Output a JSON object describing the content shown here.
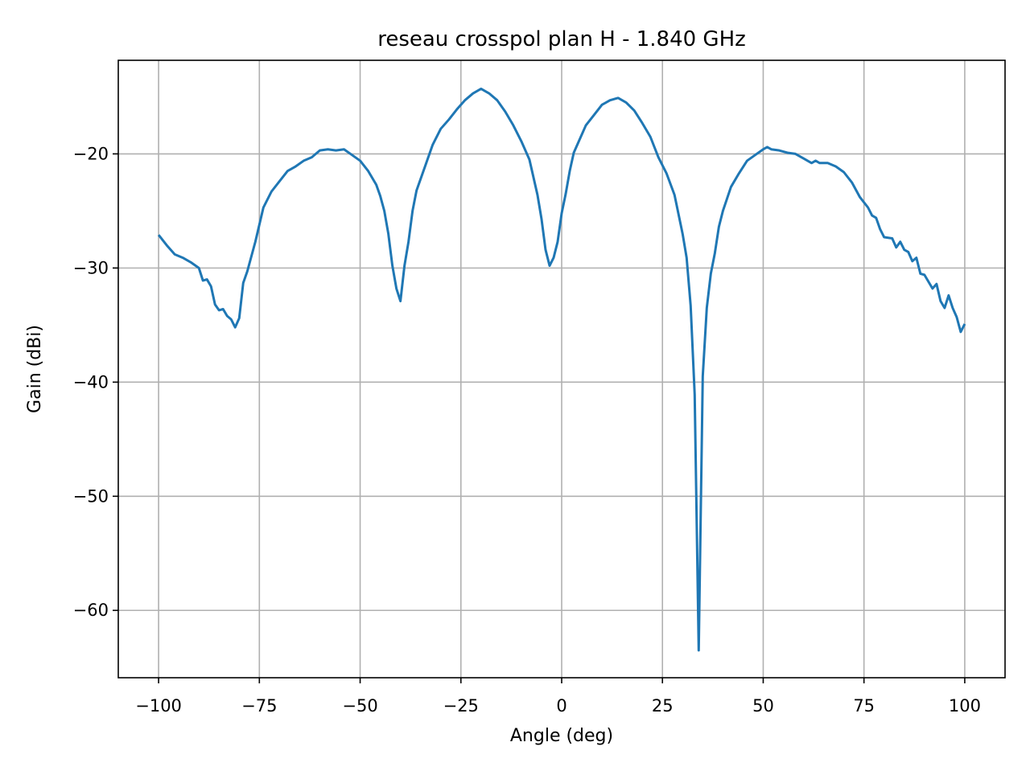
{
  "chart_data": {
    "type": "line",
    "title": "reseau crosspol plan H - 1.840 GHz",
    "x_label": "Angle (deg)",
    "y_label": "Gain (dBi)",
    "x": [
      -100,
      -98,
      -96,
      -94,
      -92,
      -90,
      -89,
      -88,
      -87,
      -86,
      -85,
      -84,
      -83,
      -82,
      -81,
      -80,
      -79,
      -78,
      -76,
      -74,
      -72,
      -70,
      -68,
      -66,
      -64,
      -62,
      -60,
      -58,
      -56,
      -54,
      -52,
      -50,
      -48,
      -46,
      -45,
      -44,
      -43,
      -42,
      -41,
      -40,
      -39,
      -38,
      -37,
      -36,
      -34,
      -32,
      -30,
      -28,
      -26,
      -24,
      -22,
      -20,
      -18,
      -16,
      -14,
      -12,
      -10,
      -8,
      -6,
      -5,
      -4,
      -3,
      -2,
      -1,
      0,
      1,
      2,
      3,
      4,
      6,
      8,
      10,
      12,
      14,
      16,
      18,
      20,
      22,
      24,
      26,
      28,
      30,
      31,
      32,
      33,
      34,
      35,
      36,
      37,
      38,
      39,
      40,
      42,
      44,
      46,
      48,
      50,
      51,
      52,
      54,
      56,
      58,
      60,
      62,
      63,
      64,
      66,
      68,
      70,
      72,
      74,
      76,
      77,
      78,
      79,
      80,
      82,
      83,
      84,
      85,
      86,
      87,
      88,
      89,
      90,
      92,
      93,
      94,
      95,
      96,
      97,
      98,
      99,
      100
    ],
    "series": [
      {
        "name": "gain",
        "color": "#1f77b4",
        "values": [
          -27.1,
          -28.0,
          -28.8,
          -29.1,
          -29.5,
          -30.0,
          -31.1,
          -31.0,
          -31.6,
          -33.2,
          -33.7,
          -33.6,
          -34.2,
          -34.5,
          -35.2,
          -34.4,
          -31.3,
          -30.3,
          -27.7,
          -24.7,
          -23.3,
          -22.4,
          -21.5,
          -21.1,
          -20.6,
          -20.3,
          -19.7,
          -19.6,
          -19.7,
          -19.6,
          -20.1,
          -20.6,
          -21.5,
          -22.7,
          -23.7,
          -25.0,
          -27.0,
          -29.8,
          -31.8,
          -32.9,
          -29.8,
          -27.7,
          -25.0,
          -23.2,
          -21.2,
          -19.2,
          -17.8,
          -17.0,
          -16.1,
          -15.3,
          -14.7,
          -14.3,
          -14.7,
          -15.3,
          -16.3,
          -17.5,
          -18.9,
          -20.5,
          -23.6,
          -25.7,
          -28.4,
          -29.8,
          -29.1,
          -27.7,
          -25.2,
          -23.5,
          -21.5,
          -19.9,
          -19.1,
          -17.5,
          -16.6,
          -15.7,
          -15.3,
          -15.1,
          -15.5,
          -16.2,
          -17.3,
          -18.5,
          -20.3,
          -21.7,
          -23.6,
          -27.0,
          -29.1,
          -33.3,
          -41.1,
          -63.5,
          -39.5,
          -33.5,
          -30.5,
          -28.7,
          -26.4,
          -25.0,
          -22.9,
          -21.7,
          -20.6,
          -20.1,
          -19.6,
          -19.4,
          -19.6,
          -19.7,
          -19.9,
          -20.0,
          -20.4,
          -20.8,
          -20.6,
          -20.8,
          -20.8,
          -21.1,
          -21.6,
          -22.5,
          -23.8,
          -24.7,
          -25.4,
          -25.6,
          -26.6,
          -27.3,
          -27.4,
          -28.2,
          -27.7,
          -28.4,
          -28.6,
          -29.4,
          -29.1,
          -30.5,
          -30.6,
          -31.8,
          -31.4,
          -32.9,
          -33.5,
          -32.4,
          -33.5,
          -34.3,
          -35.6,
          -34.9
        ]
      }
    ],
    "xlim": [
      -110,
      110
    ],
    "ylim": [
      -65.9,
      -11.8
    ],
    "xticks": [
      {
        "value": -100,
        "label": "−100"
      },
      {
        "value": -75,
        "label": "−75"
      },
      {
        "value": -50,
        "label": "−50"
      },
      {
        "value": -25,
        "label": "−25"
      },
      0,
      25,
      50,
      75,
      100
    ],
    "yticks": [
      {
        "value": -60,
        "label": "−60"
      },
      {
        "value": -50,
        "label": "−50"
      },
      {
        "value": -40,
        "label": "−40"
      },
      {
        "value": -30,
        "label": "−30"
      },
      {
        "value": -20,
        "label": "−20"
      }
    ],
    "grid": true
  }
}
